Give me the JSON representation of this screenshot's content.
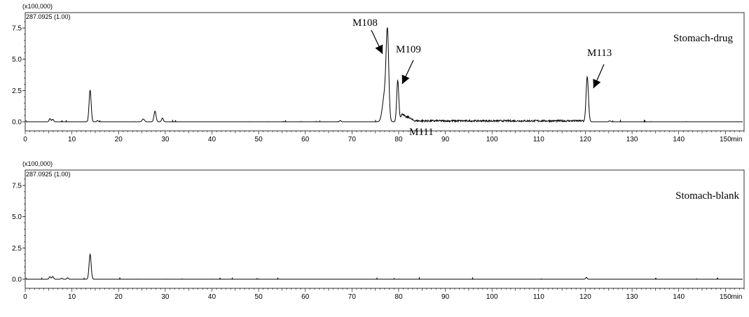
{
  "chart_data": [
    {
      "type": "line",
      "panel_label": "Stomach-drug",
      "scale_label": "(x100,000)",
      "ion_label": "287.0925 (1.00)",
      "x_unit": "min",
      "xlim": [
        0,
        154
      ],
      "ylim": [
        -0.3,
        8.5
      ],
      "x_ticks": [
        0,
        10,
        20,
        30,
        40,
        50,
        60,
        70,
        80,
        90,
        100,
        110,
        120,
        130,
        140,
        150
      ],
      "y_ticks": [
        0.0,
        2.5,
        5.0,
        7.5
      ],
      "y_tick_labels": [
        "0.0",
        "2.5",
        "5.0",
        "7.5"
      ],
      "peaks": [
        {
          "rt": 5.3,
          "height": 0.25,
          "width": 0.18
        },
        {
          "rt": 5.9,
          "height": 0.2,
          "width": 0.18
        },
        {
          "rt": 13.9,
          "height": 2.55,
          "width": 0.22
        },
        {
          "rt": 15.5,
          "height": 0.1,
          "width": 0.15
        },
        {
          "rt": 25.3,
          "height": 0.22,
          "width": 0.25
        },
        {
          "rt": 27.8,
          "height": 0.85,
          "width": 0.22
        },
        {
          "rt": 29.4,
          "height": 0.3,
          "width": 0.18
        },
        {
          "rt": 67.5,
          "height": 0.1,
          "width": 0.15
        },
        {
          "rt": 77.0,
          "height": 2.2,
          "width": 0.45
        },
        {
          "rt": 77.6,
          "height": 6.6,
          "width": 0.28
        },
        {
          "rt": 79.8,
          "height": 3.3,
          "width": 0.22
        },
        {
          "rt": 80.8,
          "height": 0.5,
          "width": 0.4
        },
        {
          "rt": 82.0,
          "height": 0.3,
          "width": 0.6
        },
        {
          "rt": 120.4,
          "height": 3.6,
          "width": 0.25
        },
        {
          "rt": 125.2,
          "height": 0.08,
          "width": 0.15
        }
      ],
      "noise_region": {
        "from": 80.5,
        "to": 119.5,
        "level": 0.14
      },
      "annotations": [
        {
          "text": "M108",
          "rt": 77.6
        },
        {
          "text": "M109",
          "rt": 79.8
        },
        {
          "text": "M111",
          "rt": 83.0
        },
        {
          "text": "M113",
          "rt": 120.4
        }
      ]
    },
    {
      "type": "line",
      "panel_label": "Stomach-blank",
      "scale_label": "(x100,000)",
      "ion_label": "287.0925 (1.00)",
      "x_unit": "min",
      "xlim": [
        0,
        154
      ],
      "ylim": [
        -0.3,
        8.5
      ],
      "x_ticks": [
        0,
        10,
        20,
        30,
        40,
        50,
        60,
        70,
        80,
        90,
        100,
        110,
        120,
        130,
        140,
        150
      ],
      "y_ticks": [
        0.0,
        2.5,
        5.0,
        7.5
      ],
      "y_tick_labels": [
        "0.0",
        "2.5",
        "5.0",
        "7.5"
      ],
      "peaks": [
        {
          "rt": 5.3,
          "height": 0.2,
          "width": 0.18
        },
        {
          "rt": 5.9,
          "height": 0.22,
          "width": 0.18
        },
        {
          "rt": 7.8,
          "height": 0.08,
          "width": 0.15
        },
        {
          "rt": 9.1,
          "height": 0.12,
          "width": 0.15
        },
        {
          "rt": 13.9,
          "height": 2.0,
          "width": 0.22
        },
        {
          "rt": 120.2,
          "height": 0.15,
          "width": 0.15
        }
      ],
      "noise_region": null,
      "annotations": []
    }
  ]
}
